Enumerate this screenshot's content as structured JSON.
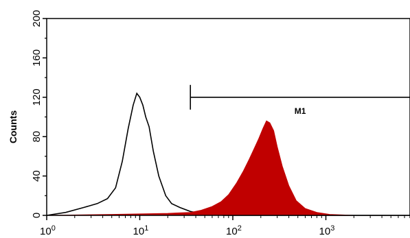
{
  "chart_data": {
    "type": "area",
    "title": "",
    "xlabel": "",
    "ylabel": "Counts",
    "xscale": "log",
    "xlim": [
      1,
      10000
    ],
    "ylim": [
      0,
      200
    ],
    "x_ticks": [
      {
        "base": "10",
        "exp": "0"
      },
      {
        "base": "10",
        "exp": "1"
      },
      {
        "base": "10",
        "exp": "2"
      },
      {
        "base": "10",
        "exp": "3"
      },
      {
        "base": "1",
        "exp": ""
      }
    ],
    "y_ticks": [
      "0",
      "40",
      "80",
      "120",
      "160",
      "200"
    ],
    "grid": false,
    "series": [
      {
        "style": "outline",
        "color": "#000000",
        "x": [
          1.0,
          1.6,
          2.5,
          3.5,
          4.5,
          5.5,
          6.5,
          7.5,
          8.5,
          9.3,
          10.0,
          10.8,
          11.6,
          12.6,
          14.0,
          16.0,
          19.0,
          22.0,
          27.0,
          35.0,
          45.0,
          60.0,
          80.0,
          120.0,
          200.0,
          400.0,
          1000.0,
          10000.0
        ],
        "y": [
          0,
          3,
          8,
          12,
          17,
          28,
          55,
          88,
          112,
          124,
          120,
          112,
          100,
          90,
          65,
          40,
          20,
          12,
          8,
          4,
          2,
          1,
          0,
          0,
          0,
          0,
          0,
          0
        ]
      },
      {
        "style": "filled",
        "color": "#c00000",
        "x": [
          1.0,
          5.0,
          20.0,
          35.0,
          45.0,
          60.0,
          75.0,
          90.0,
          110.0,
          130.0,
          150.0,
          170.0,
          190.0,
          210.0,
          230.0,
          250.0,
          275.0,
          300.0,
          340.0,
          400.0,
          480.0,
          600.0,
          800.0,
          1100.0,
          2000.0,
          10000.0
        ],
        "y": [
          0,
          1,
          2,
          3,
          5,
          9,
          14,
          21,
          33,
          45,
          57,
          68,
          78,
          88,
          96,
          94,
          86,
          70,
          50,
          30,
          15,
          7,
          3,
          1,
          0,
          0
        ]
      }
    ],
    "annotations": [
      {
        "label": "M1",
        "type": "gate",
        "x_start": 35,
        "x_end": 10000,
        "y": 120
      }
    ]
  }
}
